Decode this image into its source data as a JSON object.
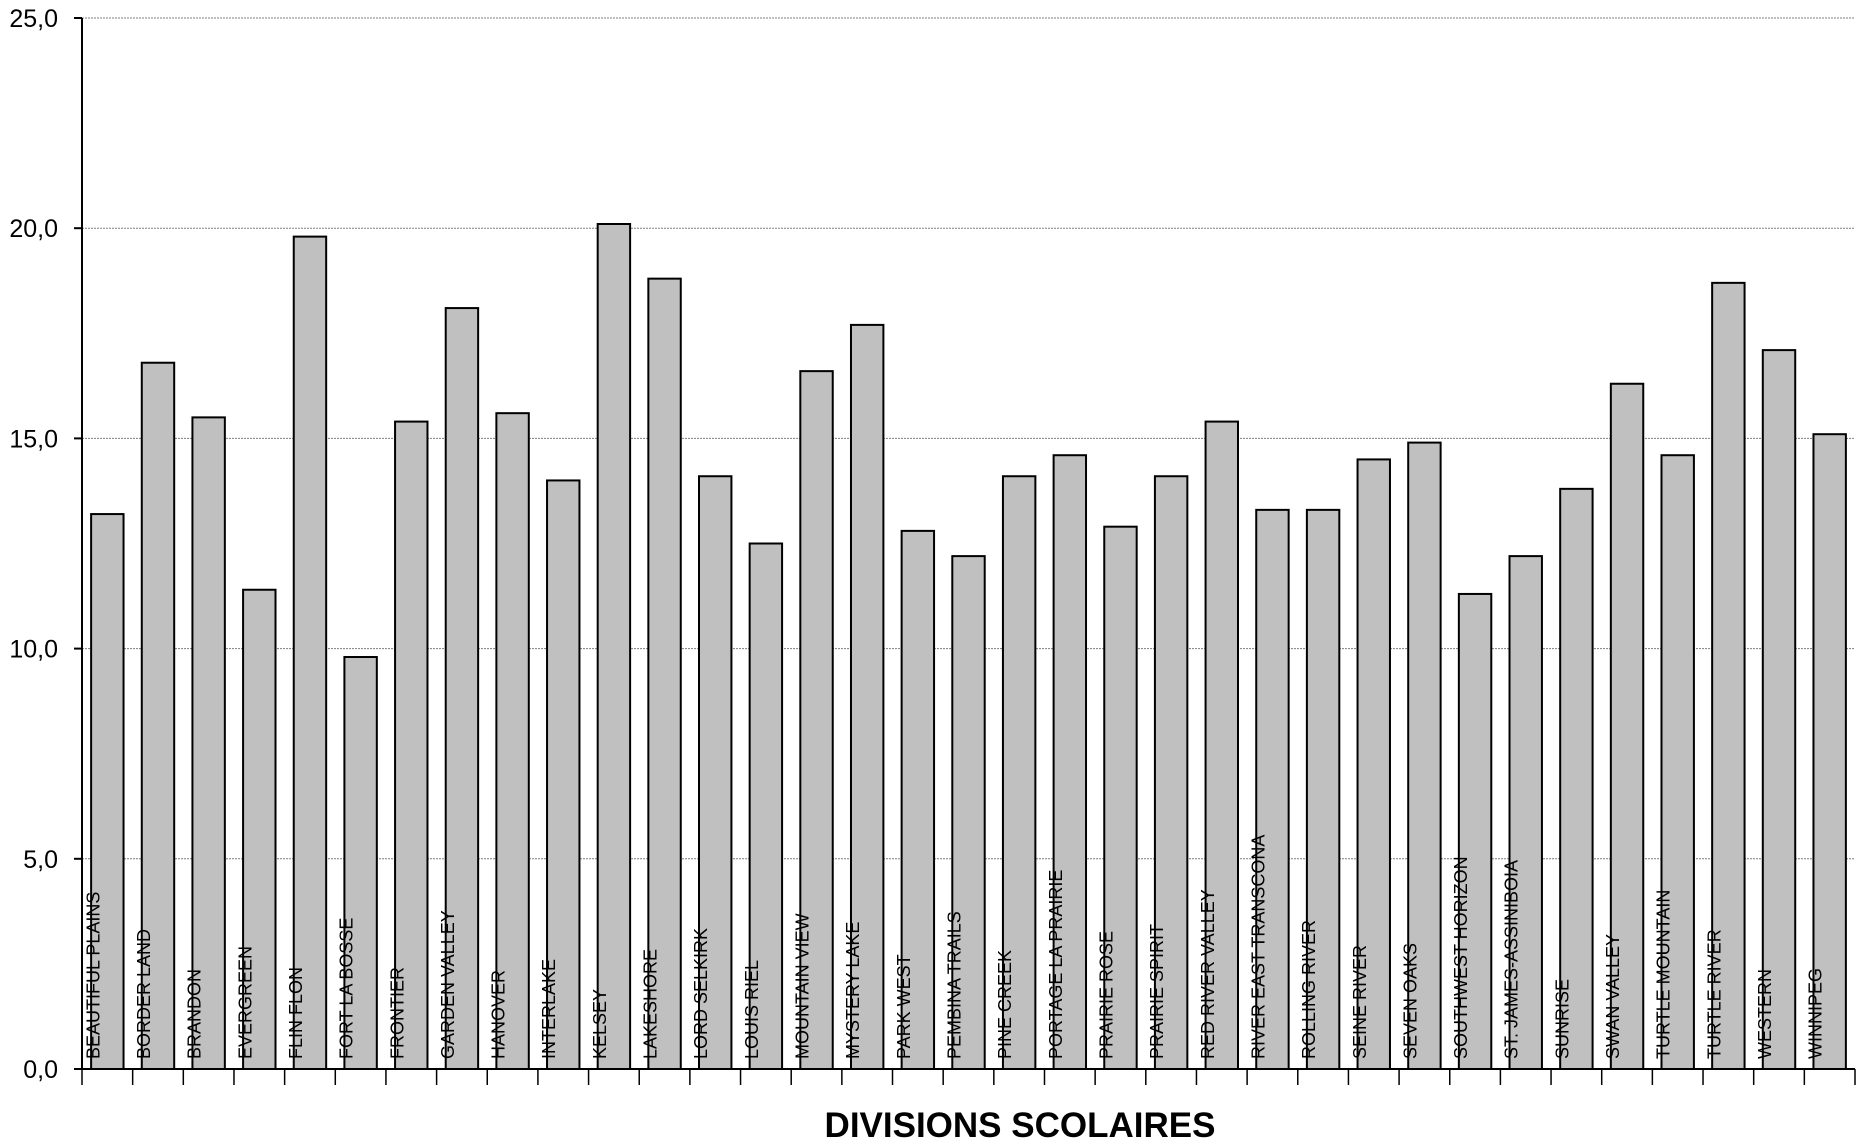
{
  "chart_data": {
    "type": "bar",
    "title": "",
    "xlabel": "DIVISIONS SCOLAIRES",
    "ylabel": "",
    "ylim": [
      0,
      25
    ],
    "yticks": [
      "0,0",
      "5,0",
      "10,0",
      "15,0",
      "20,0",
      "25,0"
    ],
    "grid": true,
    "categories": [
      "BEAUTIFUL PLAINS",
      "BORDER LAND",
      "BRANDON",
      "EVERGREEN",
      "FLIN FLON",
      "FORT LA BOSSE",
      "FRONTIER",
      "GARDEN VALLEY",
      "HANOVER",
      "INTERLAKE",
      "KELSEY",
      "LAKESHORE",
      "LORD SELKIRK",
      "LOUIS RIEL",
      "MOUNTAIN VIEW",
      "MYSTERY LAKE",
      "PARK WEST",
      "PEMBINA TRAILS",
      "PINE CREEK",
      "PORTAGE LA PRAIRIE",
      "PRAIRIE ROSE",
      "PRAIRIE SPIRIT",
      "RED RIVER VALLEY",
      "RIVER EAST TRANSCONA",
      "ROLLING RIVER",
      "SEINE RIVER",
      "SEVEN OAKS",
      "SOUTHWEST HORIZON",
      "ST. JAMES-ASSINIBOIA",
      "SUNRISE",
      "SWAN VALLEY",
      "TURTLE MOUNTAIN",
      "TURTLE RIVER",
      "WESTERN",
      "WINNIPEG"
    ],
    "values": [
      13.2,
      16.8,
      15.5,
      11.4,
      19.8,
      9.8,
      15.4,
      18.1,
      15.6,
      14.0,
      20.1,
      18.8,
      14.1,
      12.5,
      16.6,
      17.7,
      12.8,
      12.2,
      14.1,
      14.6,
      12.9,
      14.1,
      15.4,
      13.3,
      13.3,
      14.5,
      14.9,
      11.3,
      12.2,
      13.8,
      16.3,
      14.6,
      18.7,
      17.1,
      15.1
    ],
    "colors": {
      "bar": "#c0c0c0",
      "bar_stroke": "#000000",
      "grid": "#7f7f7f"
    }
  }
}
